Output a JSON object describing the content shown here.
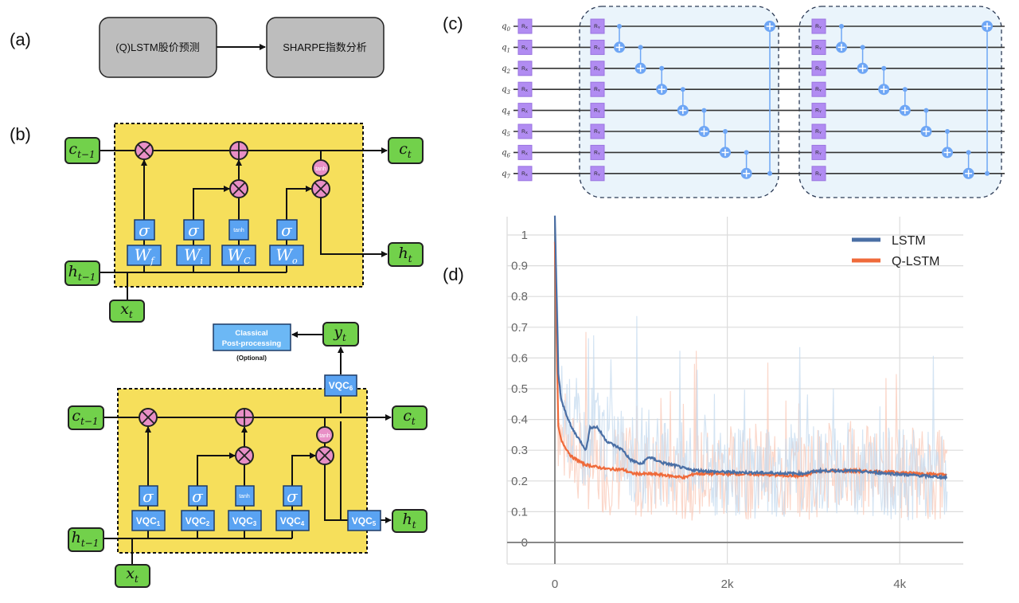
{
  "panel_labels": {
    "a": "(a)",
    "b": "(b)",
    "c": "(c)",
    "d": "(d)"
  },
  "flow": {
    "step1": "(Q)LSTM股价预测",
    "step2": "SHARPE指数分析"
  },
  "lstm": {
    "c_prev": {
      "base": "c",
      "sub": "t−1"
    },
    "c_next": {
      "base": "c",
      "sub": "t"
    },
    "h_prev": {
      "base": "h",
      "sub": "t−1"
    },
    "h_next": {
      "base": "h",
      "sub": "t"
    },
    "x": {
      "base": "x",
      "sub": "t"
    },
    "sigma": "σ",
    "tanh": "tanh",
    "weights": [
      {
        "base": "W",
        "sub": "f"
      },
      {
        "base": "W",
        "sub": "i"
      },
      {
        "base": "W",
        "sub": "C"
      },
      {
        "base": "W",
        "sub": "o"
      }
    ]
  },
  "qlstm": {
    "c_prev": {
      "base": "c",
      "sub": "t−1"
    },
    "c_next": {
      "base": "c",
      "sub": "t"
    },
    "h_prev": {
      "base": "h",
      "sub": "t−1"
    },
    "h_next": {
      "base": "h",
      "sub": "t"
    },
    "x": {
      "base": "x",
      "sub": "t"
    },
    "y": {
      "base": "y",
      "sub": "t"
    },
    "sigma": "σ",
    "tanh": "tanh",
    "vqc": [
      {
        "base": "VQC",
        "sub": "1"
      },
      {
        "base": "VQC",
        "sub": "2"
      },
      {
        "base": "VQC",
        "sub": "3"
      },
      {
        "base": "VQC",
        "sub": "4"
      },
      {
        "base": "VQC",
        "sub": "5"
      },
      {
        "base": "VQC",
        "sub": "6"
      }
    ],
    "post_line1": "Classical",
    "post_line2": "Post-processing",
    "post_note": "(Optional)"
  },
  "circuit": {
    "qubits": [
      "0",
      "1",
      "2",
      "3",
      "4",
      "5",
      "6",
      "7"
    ],
    "qubit_base": "q",
    "rx": {
      "base": "R",
      "sub": "X"
    },
    "ry": {
      "base": "R",
      "sub": "Y"
    },
    "layers": 2,
    "colors": {
      "gate": "#b18cf2",
      "cnot": "#6ea6f5",
      "block": "#eaf4fb"
    }
  },
  "chart_data": {
    "type": "line",
    "xlim": [
      0,
      4550
    ],
    "ylim": [
      0,
      1.05
    ],
    "xticks": [
      {
        "value": 0,
        "label": "0"
      },
      {
        "value": 2000,
        "label": "2k"
      },
      {
        "value": 4000,
        "label": "4k"
      }
    ],
    "yticks": [
      {
        "value": 0,
        "label": "0"
      },
      {
        "value": 0.1,
        "label": "0.1"
      },
      {
        "value": 0.2,
        "label": "0.2"
      },
      {
        "value": 0.3,
        "label": "0.3"
      },
      {
        "value": 0.4,
        "label": "0.4"
      },
      {
        "value": 0.5,
        "label": "0.5"
      },
      {
        "value": 0.6,
        "label": "0.6"
      },
      {
        "value": 0.7,
        "label": "0.7"
      },
      {
        "value": 0.8,
        "label": "0.8"
      },
      {
        "value": 0.9,
        "label": "0.9"
      },
      {
        "value": 1,
        "label": "1"
      }
    ],
    "grid": true,
    "legend_position": "top-right",
    "series": [
      {
        "name": "LSTM",
        "color": "#4a6fa5",
        "raw_color": "#c6dbef",
        "x": [
          0,
          40,
          75,
          190,
          340,
          360,
          410,
          490,
          600,
          790,
          870,
          1000,
          1090,
          1250,
          1400,
          1550,
          1850,
          2300,
          2870,
          3060,
          3430,
          4000,
          4550
        ],
        "y": [
          1.06,
          0.55,
          0.46,
          0.375,
          0.31,
          0.3,
          0.375,
          0.375,
          0.33,
          0.3,
          0.27,
          0.254,
          0.278,
          0.259,
          0.25,
          0.237,
          0.23,
          0.227,
          0.224,
          0.233,
          0.233,
          0.222,
          0.211
        ]
      },
      {
        "name": "Q-LSTM",
        "color": "#ef6a3a",
        "raw_color": "#f9c9b8",
        "x": [
          0,
          40,
          75,
          190,
          340,
          600,
          790,
          900,
          1170,
          1510,
          1620,
          2300,
          2870,
          3060,
          3430,
          4000,
          4550
        ],
        "y": [
          0.974,
          0.375,
          0.33,
          0.28,
          0.254,
          0.239,
          0.237,
          0.224,
          0.222,
          0.211,
          0.224,
          0.222,
          0.216,
          0.233,
          0.233,
          0.228,
          0.22
        ]
      }
    ]
  }
}
